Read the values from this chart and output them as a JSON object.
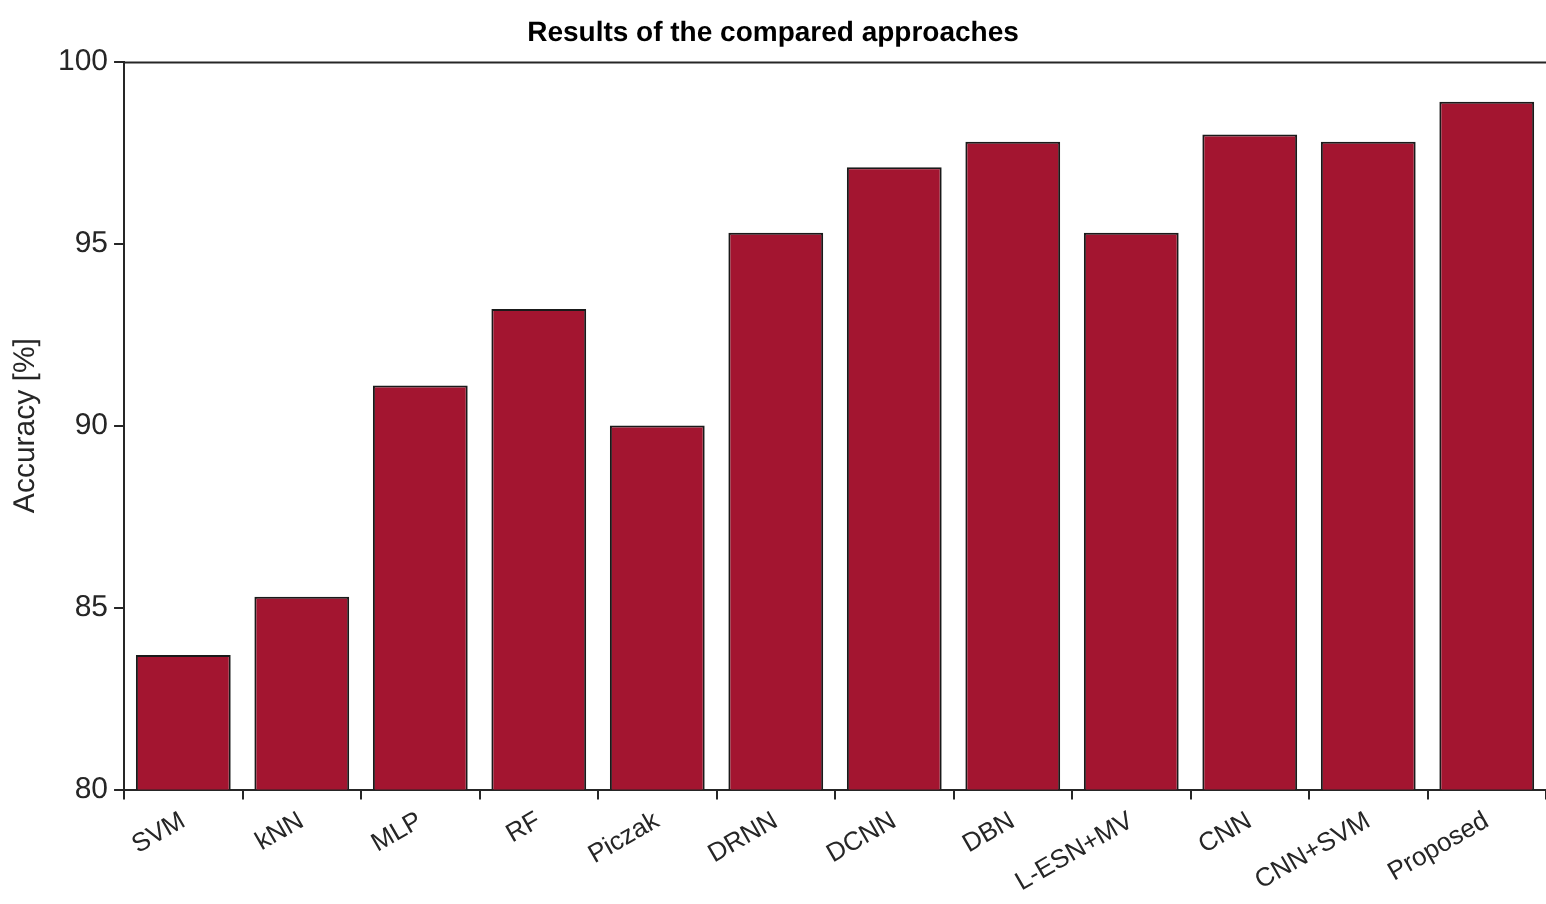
{
  "chart_data": {
    "type": "bar",
    "title": "Results of the compared approaches",
    "ylabel": "Accuracy [%]",
    "categories": [
      "SVM",
      "kNN",
      "MLP",
      "RF",
      "Piczak",
      "DRNN",
      "DCNN",
      "DBN",
      "L-ESN+MV",
      "CNN",
      "CNN+SVM",
      "Proposed"
    ],
    "values": [
      83.7,
      85.3,
      91.1,
      93.2,
      90.0,
      95.3,
      97.1,
      97.8,
      95.3,
      98.0,
      97.8,
      98.9
    ],
    "color": "#a31530",
    "ylim": [
      80,
      100
    ],
    "yticks": [
      80,
      85,
      90,
      95,
      100
    ],
    "grid": false,
    "legend": false
  }
}
